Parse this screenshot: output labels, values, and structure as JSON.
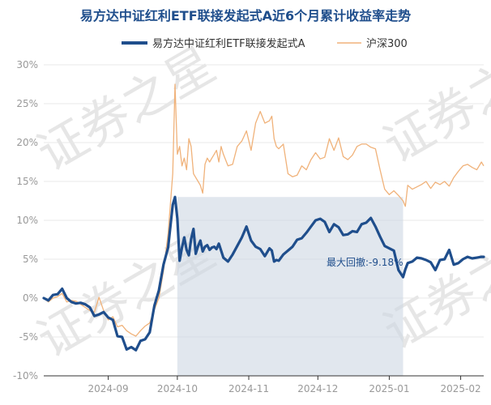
{
  "chart_data": {
    "type": "line",
    "title": "易方达中证红利ETF联接发起式A近6个月累计收益率走势",
    "watermark": "证券之星",
    "ylim": [
      -10,
      30
    ],
    "ytick_labels": [
      "-10%",
      "-5%",
      "0%",
      "5%",
      "10%",
      "15%",
      "20%",
      "25%",
      "30%"
    ],
    "yticks": [
      -10,
      -5,
      0,
      5,
      10,
      15,
      20,
      25,
      30
    ],
    "x_ticks": [
      {
        "label": "2024-09",
        "day": 28
      },
      {
        "label": "2024-10",
        "day": 58
      },
      {
        "label": "2024-11",
        "day": 89
      },
      {
        "label": "2024-12",
        "day": 119
      },
      {
        "label": "2025-01",
        "day": 150
      },
      {
        "label": "2025-02",
        "day": 181
      }
    ],
    "x_range": [
      0,
      191
    ],
    "colors": {
      "fund": "#1f4e8c",
      "index": "#f0b27a",
      "drawdown": "#cdd7e2"
    },
    "series": [
      {
        "name": "易方达中证红利ETF联接发起式A",
        "x": [
          0,
          2,
          4,
          6,
          8,
          10,
          12,
          14,
          16,
          18,
          20,
          22,
          24,
          26,
          28,
          30,
          32,
          34,
          36,
          38,
          40,
          42,
          44,
          46,
          48,
          50,
          52,
          54,
          56,
          57,
          58,
          59,
          60,
          61,
          62,
          63,
          64,
          65,
          66,
          67,
          68,
          69,
          70,
          71,
          72,
          73,
          74,
          75,
          76,
          77,
          78,
          80,
          82,
          84,
          86,
          88,
          90,
          92,
          94,
          96,
          98,
          99,
          100,
          101,
          102,
          104,
          106,
          108,
          110,
          112,
          114,
          116,
          118,
          120,
          122,
          124,
          126,
          128,
          130,
          132,
          134,
          136,
          138,
          140,
          142,
          144,
          146,
          148,
          150,
          152,
          154,
          156,
          157,
          158,
          160,
          162,
          164,
          166,
          168,
          170,
          172,
          174,
          176,
          178,
          180,
          182,
          184,
          186,
          188,
          190,
          191
        ],
        "values": [
          0,
          -0.3,
          0.4,
          0.5,
          1.2,
          0,
          -0.5,
          -0.7,
          -0.6,
          -0.8,
          -1.2,
          -2.3,
          -2.1,
          -1.8,
          -2.5,
          -2.8,
          -4.9,
          -5,
          -6.6,
          -6.3,
          -6.7,
          -5.5,
          -5.3,
          -4.4,
          -1,
          1,
          4.3,
          6.5,
          12,
          13,
          10.2,
          4.8,
          6.5,
          7.8,
          6.2,
          5.5,
          7.6,
          8.9,
          5.7,
          6.7,
          7.4,
          6,
          6.6,
          6.8,
          6.2,
          6.5,
          6.6,
          6.3,
          7,
          6.1,
          5.2,
          4.7,
          5.6,
          6.7,
          7.8,
          9.2,
          7.4,
          6.6,
          6.3,
          5.4,
          6.4,
          6.1,
          4.7,
          4.9,
          4.8,
          5.6,
          6.1,
          6.6,
          7.5,
          7.7,
          8.4,
          9.2,
          10,
          10.2,
          9.8,
          8.5,
          9.5,
          9.1,
          8.1,
          8.2,
          8.6,
          8.5,
          9.5,
          9.7,
          10.3,
          9.2,
          7.9,
          6.7,
          6.4,
          6.1,
          3.6,
          2.7,
          3.7,
          4.5,
          4.7,
          5.2,
          5.1,
          4.9,
          4.6,
          3.6,
          4.9,
          5,
          6.2,
          4.3,
          4.5,
          5,
          5.3,
          5.1,
          5.2,
          5.3,
          5.3
        ]
      },
      {
        "name": "沪深300",
        "x": [
          0,
          2,
          4,
          6,
          8,
          10,
          12,
          14,
          16,
          18,
          20,
          22,
          24,
          26,
          28,
          30,
          32,
          34,
          36,
          38,
          40,
          42,
          44,
          46,
          48,
          50,
          52,
          54,
          56,
          57,
          58,
          59,
          60,
          61,
          62,
          63,
          64,
          65,
          66,
          67,
          68,
          69,
          70,
          71,
          72,
          73,
          74,
          75,
          76,
          77,
          78,
          80,
          82,
          84,
          86,
          88,
          90,
          92,
          94,
          96,
          98,
          99,
          100,
          101,
          102,
          104,
          106,
          108,
          110,
          112,
          114,
          116,
          118,
          120,
          122,
          124,
          126,
          128,
          130,
          132,
          134,
          136,
          138,
          140,
          142,
          144,
          146,
          148,
          150,
          152,
          154,
          156,
          157,
          158,
          160,
          162,
          164,
          166,
          168,
          170,
          172,
          174,
          176,
          178,
          180,
          182,
          184,
          186,
          188,
          190,
          191
        ],
        "values": [
          0,
          -0.5,
          0,
          0.2,
          0.6,
          -0.5,
          -0.3,
          -0.4,
          -0.8,
          -1.2,
          -1.6,
          -1.8,
          0.1,
          -1.6,
          -2.8,
          -2.4,
          -3.7,
          -3.5,
          -4.2,
          -4.6,
          -4.9,
          -4.2,
          -3.6,
          -3.2,
          -1.5,
          0,
          3.5,
          8.3,
          16,
          27.5,
          18.5,
          19.5,
          17,
          18,
          16.5,
          20.5,
          19.5,
          16,
          15.5,
          15,
          14.5,
          13.5,
          17.2,
          18,
          17.5,
          18,
          18.5,
          19,
          17.5,
          19.5,
          18.5,
          17,
          17.2,
          19.5,
          20.2,
          21.5,
          19,
          22.5,
          24,
          22.5,
          22.8,
          23.4,
          20.5,
          19.5,
          19.2,
          19.8,
          16,
          15.6,
          15.8,
          17,
          16.5,
          17.8,
          18.7,
          17.9,
          18.1,
          20.5,
          19,
          20.6,
          18.2,
          17.8,
          18.4,
          19.5,
          19.8,
          19.8,
          19.4,
          19.2,
          16.5,
          14,
          13.3,
          13.8,
          13.2,
          12.5,
          11.8,
          14.5,
          14,
          14.3,
          14.6,
          15,
          14.1,
          14.9,
          14.6,
          15,
          14.4,
          15.5,
          16.3,
          17,
          17.2,
          16.8,
          16.5,
          17.5,
          17
        ]
      }
    ],
    "drawdown": {
      "start_day": 58,
      "end_day": 156,
      "peak_value": 13,
      "trough_value": 2.7
    },
    "annotation": {
      "label": "最大回撤:",
      "value": "-9.18%"
    }
  }
}
